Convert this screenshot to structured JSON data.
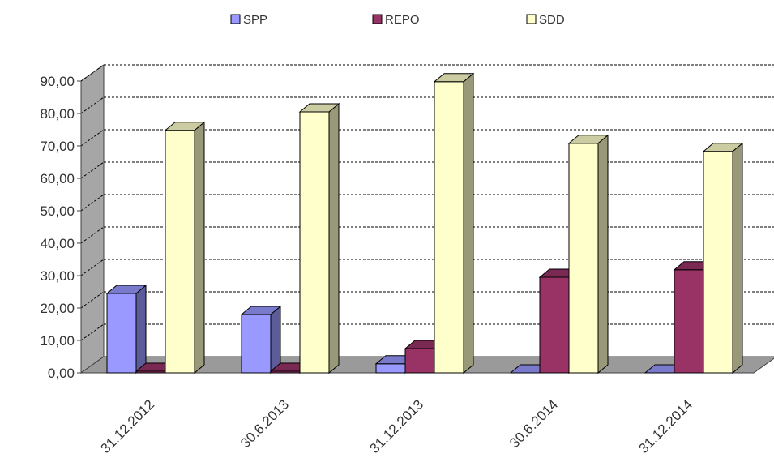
{
  "chart_data": {
    "type": "bar",
    "style": "3d-clustered-column",
    "categories": [
      "31.12.2012",
      "30.6.2013",
      "31.12.2013",
      "30.6.2014",
      "31.12.2014"
    ],
    "series": [
      {
        "name": "SPP",
        "color": "#9999ff",
        "values": [
          24.5,
          18.0,
          2.8,
          0.0,
          0.0
        ]
      },
      {
        "name": "REPO",
        "color": "#993366",
        "values": [
          0.5,
          0.5,
          7.5,
          29.5,
          31.8
        ]
      },
      {
        "name": "SDD",
        "color": "#ffffcc",
        "values": [
          74.8,
          80.5,
          89.8,
          70.8,
          68.3
        ]
      }
    ],
    "y_ticks": [
      "0,00",
      "10,00",
      "20,00",
      "30,00",
      "40,00",
      "50,00",
      "60,00",
      "70,00",
      "80,00",
      "90,00"
    ],
    "ylim": [
      0,
      90
    ],
    "grid": true,
    "gridline_style": "dashed",
    "legend_position": "top"
  }
}
